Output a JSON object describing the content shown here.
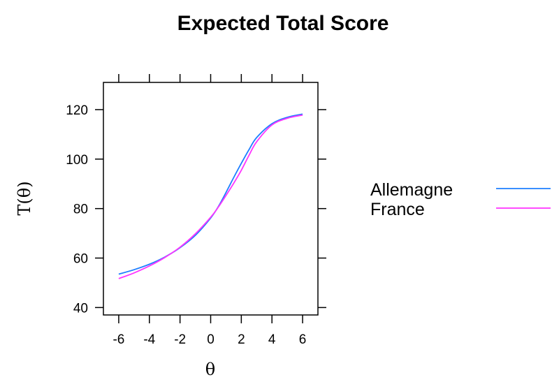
{
  "chart_data": {
    "type": "line",
    "title": "Expected Total Score",
    "xlabel": "θ",
    "ylabel": "T(θ)",
    "xlim": [
      -7,
      7
    ],
    "ylim": [
      37,
      131
    ],
    "x_ticks": [
      -6,
      -4,
      -2,
      0,
      2,
      4,
      6
    ],
    "y_ticks": [
      40,
      60,
      80,
      100,
      120
    ],
    "grid": false,
    "legend_position": "right",
    "series": [
      {
        "name": "Allemagne",
        "color": "#1e7fff",
        "x": [
          -6,
          -5,
          -4,
          -3,
          -2,
          -1,
          0,
          0.5,
          1,
          1.5,
          2,
          2.5,
          3,
          4,
          5,
          6
        ],
        "y": [
          53.5,
          55.3,
          57.5,
          60.4,
          64.2,
          69.2,
          76.2,
          80.8,
          86.5,
          92.5,
          98.3,
          103.8,
          108.7,
          114.3,
          116.9,
          118.2
        ]
      },
      {
        "name": "France",
        "color": "#ff33ff",
        "x": [
          -6,
          -5,
          -4,
          -3,
          -2,
          -1,
          0,
          0.5,
          1,
          1.5,
          2,
          2.5,
          3,
          4,
          5,
          6
        ],
        "y": [
          51.7,
          54.0,
          56.8,
          60.2,
          64.4,
          69.8,
          76.5,
          80.6,
          85.3,
          90.2,
          95.5,
          101.5,
          107.0,
          113.8,
          116.5,
          117.8
        ]
      }
    ]
  }
}
